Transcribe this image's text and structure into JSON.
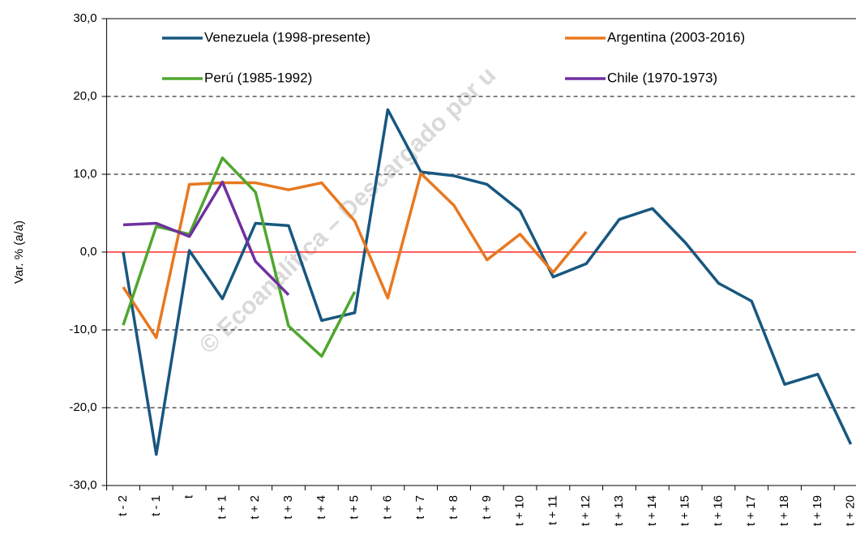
{
  "chart_data": {
    "type": "line",
    "y_label": "Var. % (a/a)",
    "watermark": "© Ecoanalítica – Descargado por u",
    "categories": [
      "t - 2",
      "t - 1",
      "t",
      "t + 1",
      "t + 2",
      "t + 3",
      "t + 4",
      "t + 5",
      "t + 6",
      "t + 7",
      "t + 8",
      "t + 9",
      "t + 10",
      "t + 11",
      "t + 12",
      "t + 13",
      "t + 14",
      "t + 15",
      "t + 16",
      "t + 17",
      "t + 18",
      "t + 19",
      "t + 20"
    ],
    "series": [
      {
        "name": "Venezuela (1998-presente)",
        "color": "#17577f",
        "values": [
          0,
          -26,
          0.2,
          -6,
          3.7,
          3.4,
          -8.8,
          -7.8,
          18.3,
          10.3,
          9.8,
          8.7,
          5.3,
          -3.2,
          -1.5,
          4.2,
          5.6,
          1.2,
          -4,
          -6.3,
          -17,
          -15.7,
          -24.7
        ]
      },
      {
        "name": "Argentina (2003-2016)",
        "color": "#e8781f",
        "values": [
          -4.5,
          -11,
          8.7,
          8.9,
          8.9,
          8,
          8.9,
          4,
          -5.9,
          10.1,
          6,
          -1,
          2.3,
          -2.6,
          2.6,
          null,
          null,
          null,
          null,
          null,
          null,
          null,
          null
        ]
      },
      {
        "name": "Perú (1985-1992)",
        "color": "#4ea72e",
        "values": [
          -9.4,
          3.3,
          2.3,
          12.1,
          7.7,
          -9.5,
          -13.4,
          -5.1,
          null,
          null,
          null,
          null,
          null,
          null,
          null,
          null,
          null,
          null,
          null,
          null,
          null,
          null,
          null
        ]
      },
      {
        "name": "Chile (1970-1973)",
        "color": "#7030a0",
        "values": [
          3.5,
          3.7,
          2,
          9,
          -1.2,
          -5.5,
          null,
          null,
          null,
          null,
          null,
          null,
          null,
          null,
          null,
          null,
          null,
          null,
          null,
          null,
          null,
          null,
          null
        ]
      }
    ],
    "ylim": [
      -30,
      30
    ],
    "yticks": [
      {
        "value": -30,
        "label": "-30,0"
      },
      {
        "value": -20,
        "label": "-20,0"
      },
      {
        "value": -10,
        "label": "-10,0"
      },
      {
        "value": 0,
        "label": "0,0"
      },
      {
        "value": 10,
        "label": "10,0"
      },
      {
        "value": 20,
        "label": "20,0"
      },
      {
        "value": 30,
        "label": "30,0"
      }
    ],
    "grid": true,
    "zero_line_color": "#ff0000"
  }
}
